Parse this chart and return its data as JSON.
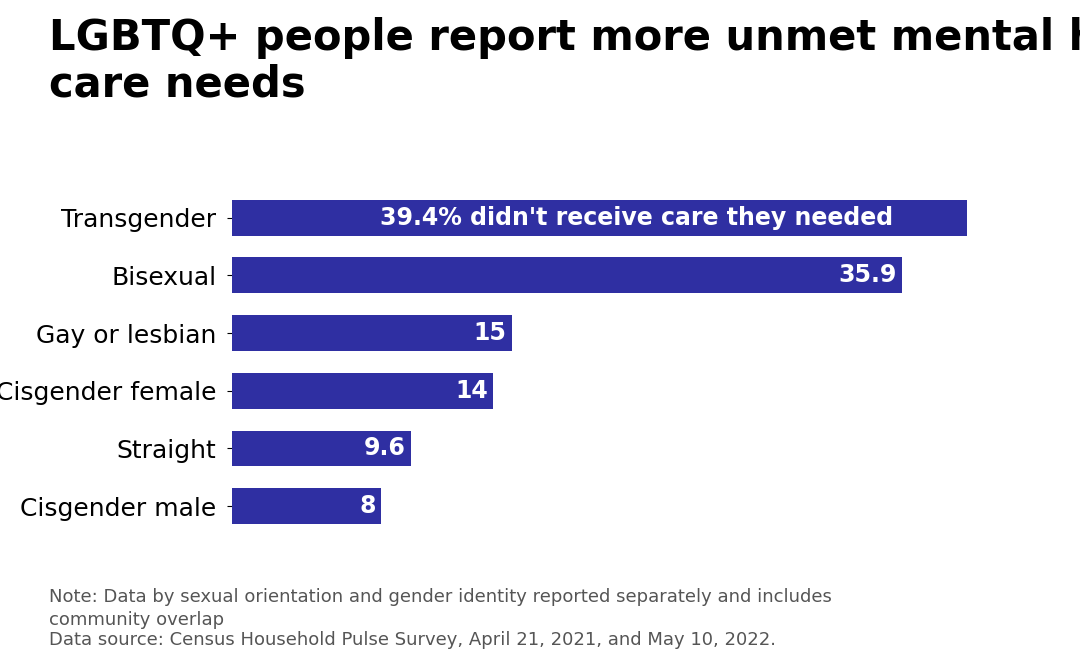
{
  "title": "LGBTQ+ people report more unmet mental health\ncare needs",
  "categories": [
    "Cisgender male",
    "Straight",
    "Cisgender female",
    "Gay or lesbian",
    "Bisexual",
    "Transgender"
  ],
  "values": [
    8,
    9.6,
    14,
    15,
    35.9,
    39.4
  ],
  "bar_color": "#2f2fa2",
  "bar_labels": [
    "8",
    "9.6",
    "14",
    "15",
    "35.9",
    "39.4% didn't receive care they needed"
  ],
  "xlim": [
    0,
    44
  ],
  "background_color": "#ffffff",
  "title_fontsize": 30,
  "title_fontweight": "bold",
  "note_text": "Note: Data by sexual orientation and gender identity reported separately and includes\ncommunity overlap",
  "source_text": "Data source: Census Household Pulse Survey, April 21, 2021, and May 10, 2022.",
  "footer_fontsize": 13,
  "bar_label_fontsize": 17,
  "category_fontsize": 18,
  "bar_height": 0.62
}
